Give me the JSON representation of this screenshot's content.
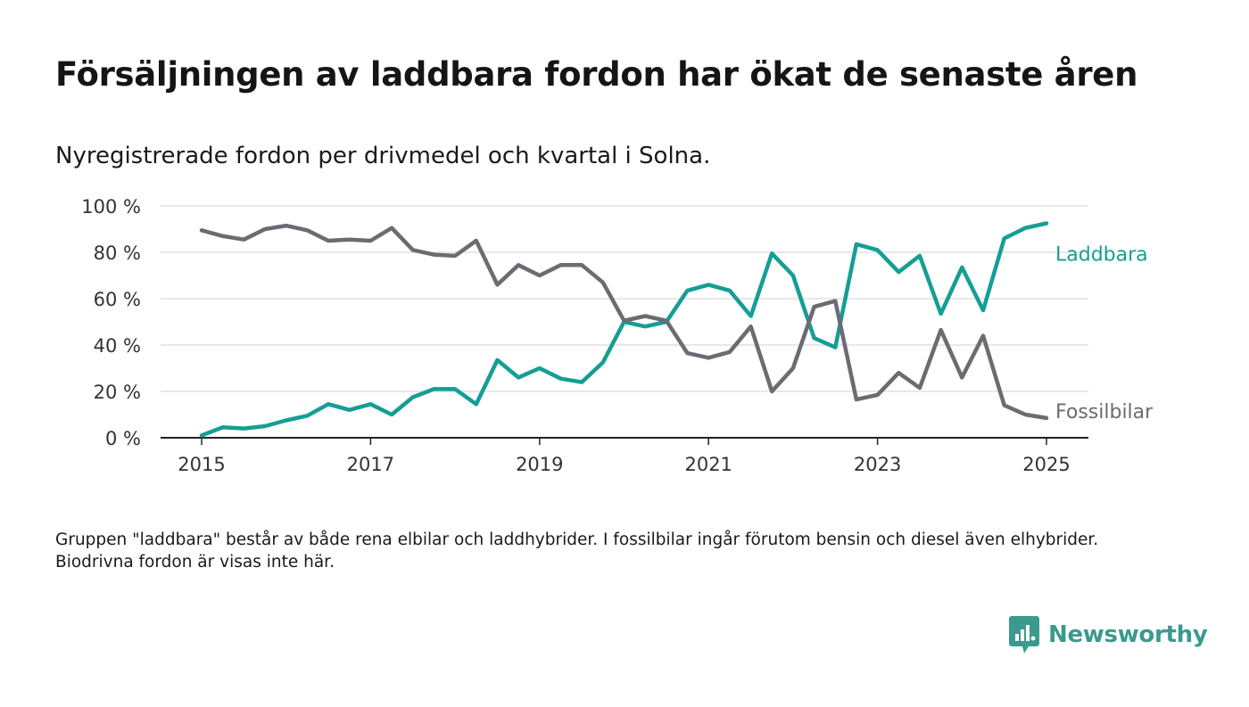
{
  "title": "Försäljningen av laddbara fordon har ökat de senaste åren",
  "subtitle": "Nyregistrerade fordon per drivmedel och kvartal i Solna.",
  "footnote": "Gruppen \"laddbara\" består av både rena elbilar och laddhybrider. I fossilbilar ingår förutom bensin och diesel även elhybrider. Biodrivna fordon är visas inte här.",
  "brand": {
    "name": "Newsworthy",
    "color": "#3a9a8e"
  },
  "chart_data": {
    "type": "line",
    "ylim": [
      0,
      100
    ],
    "y_ticks": [
      0,
      20,
      40,
      60,
      80,
      100
    ],
    "y_tick_labels": [
      "0 %",
      "20 %",
      "40 %",
      "60 %",
      "80 %",
      "100 %"
    ],
    "xlim": [
      2015.0,
      2025.0
    ],
    "x_ticks": [
      2015,
      2017,
      2019,
      2021,
      2023,
      2025
    ],
    "x_tick_labels": [
      "2015",
      "2017",
      "2019",
      "2021",
      "2023",
      "2025"
    ],
    "grid": true,
    "legend": "end-of-line labels",
    "x": [
      2015.0,
      2015.25,
      2015.5,
      2015.75,
      2016.0,
      2016.25,
      2016.5,
      2016.75,
      2017.0,
      2017.25,
      2017.5,
      2017.75,
      2018.0,
      2018.25,
      2018.5,
      2018.75,
      2019.0,
      2019.25,
      2019.5,
      2019.75,
      2020.0,
      2020.25,
      2020.5,
      2020.75,
      2021.0,
      2021.25,
      2021.5,
      2021.75,
      2022.0,
      2022.25,
      2022.5,
      2022.75,
      2023.0,
      2023.25,
      2023.5,
      2023.75,
      2024.0,
      2024.25,
      2024.5,
      2024.75,
      2025.0
    ],
    "series": [
      {
        "name": "Laddbara",
        "color": "#159e94",
        "values": [
          1,
          4.5,
          4,
          5,
          7.5,
          9.5,
          14.5,
          12,
          14.5,
          10,
          17.5,
          21,
          21,
          14.5,
          33.5,
          26,
          30,
          25.5,
          24,
          32.5,
          50,
          48,
          50,
          63.5,
          66,
          63.5,
          52.5,
          79.5,
          70,
          43,
          39,
          83.5,
          81,
          71.5,
          78.5,
          53.5,
          73.5,
          55,
          86,
          90.5,
          92.5
        ]
      },
      {
        "name": "Fossilbilar",
        "color": "#6c6b72",
        "values": [
          89.5,
          87,
          85.5,
          90,
          91.5,
          89.5,
          85,
          85.5,
          85,
          90.5,
          81,
          79,
          78.5,
          85,
          66,
          74.5,
          70,
          74.5,
          74.5,
          67,
          50.5,
          52.5,
          50.5,
          36.5,
          34.5,
          37,
          48,
          20,
          30,
          56.5,
          59,
          16.5,
          18.5,
          28,
          21.5,
          46.5,
          26,
          44,
          14,
          10,
          8.5
        ]
      }
    ]
  }
}
